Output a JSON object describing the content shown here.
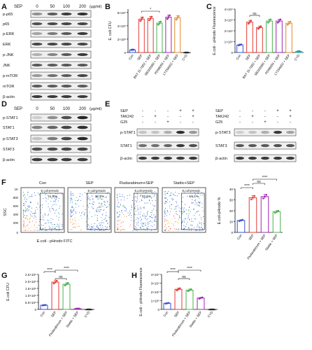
{
  "panels": {
    "A": {
      "letter": "A",
      "sep_label": "SEP",
      "doses": [
        "0",
        "50",
        "100",
        "200"
      ],
      "unit": "(μg/ml)",
      "proteins": [
        "p-p65",
        "p65",
        "p-ERK",
        "ERK",
        "p-JNK",
        "JNK",
        "p-mTOR",
        "mTOR",
        "β-actin"
      ]
    },
    "B": {
      "letter": "B",
      "ylabel": "E. coli CFU",
      "yticks": [
        "0",
        "2×10⁶",
        "4×10⁶",
        "6×10⁶"
      ],
      "sig": "*",
      "categories": [
        "Con",
        "SEP",
        "BAY 11-7082 + SEP",
        "SB203580 + SEP",
        "PD98059 + SEP",
        "LY294002 + SEP",
        "CYD"
      ]
    },
    "C": {
      "letter": "C",
      "ylabel": "E.coli - pHrodo Fluorescence",
      "yticks": [
        "0",
        "1×10⁴",
        "2×10⁴",
        "3×10⁴",
        "4×10⁴"
      ],
      "sig": "ns",
      "categories": [
        "Con",
        "SEP",
        "BAY 11-7082 + SEP",
        "SB203580 + SEP",
        "PD98059 + SEP",
        "LY294002 + SEP",
        "CYD"
      ]
    },
    "D": {
      "letter": "D",
      "sep_label": "SEP",
      "doses": [
        "0",
        "50",
        "100",
        "200"
      ],
      "unit": "(μg/ml)",
      "proteins": [
        "p-STAT1",
        "STAT1",
        "p-STAT3",
        "STAT3",
        "β-actin"
      ]
    },
    "E": {
      "letter": "E",
      "left": {
        "row_labels": [
          "SEP",
          "TAK242",
          "G25"
        ],
        "grid": [
          [
            "-",
            "-",
            "-",
            "+",
            "+"
          ],
          [
            "-",
            "+",
            "-",
            "-",
            "+"
          ],
          [
            "-",
            "-",
            "+",
            "-",
            "-"
          ]
        ],
        "proteins": [
          "p-STAT1",
          "STAT1",
          "β-actin"
        ]
      },
      "right": {
        "row_labels": [
          "SEP",
          "TAK242",
          "G25"
        ],
        "grid": [
          [
            "-",
            "-",
            "-",
            "+",
            "+"
          ],
          [
            "-",
            "+",
            "-",
            "-",
            "+"
          ],
          [
            "-",
            "-",
            "+",
            "-",
            "-"
          ]
        ],
        "proteins": [
          "p-STAT3",
          "STAT3",
          "β-actin"
        ]
      }
    },
    "F": {
      "letter": "F",
      "y_axis": "SSC",
      "x_axis": "E.coli - pHrodo FITC",
      "y_ticks": [
        "1K",
        "800",
        "600",
        "400",
        "200",
        "0"
      ],
      "plots": [
        {
          "title": "Con",
          "gate_label": "E.coli-pHrodo",
          "percent": "11.8%"
        },
        {
          "title": "SEP",
          "gate_label": "E.coli-pHrodo",
          "percent": "32.4%"
        },
        {
          "title": "Fludarabinum+SEP",
          "gate_label": "E.coli-pHrodo",
          "percent": "33.1%"
        },
        {
          "title": "Stattic+SEP",
          "gate_label": "E.coli-pHrodo",
          "percent": "19.1%"
        }
      ],
      "bar_ylabel": "E.coli-pHrodo %",
      "bar_yticks": [
        "0",
        "10",
        "20",
        "30",
        "40"
      ],
      "bar_categories": [
        "Con",
        "SEP",
        "Fludarabinum + SEP",
        "Stattic + SEP"
      ],
      "sig": [
        "****",
        "ns",
        "****"
      ]
    },
    "G": {
      "letter": "G",
      "ylabel": "E.coli CFU",
      "yticks": [
        "0",
        "5.0×10⁵",
        "1.0×10⁶",
        "1.5×10⁶",
        "2.0×10⁶",
        "2.5×10⁶"
      ],
      "categories": [
        "Con",
        "SEP",
        "Fludarabinum + SEP",
        "Stattic + SEP",
        "CYD"
      ],
      "sig": [
        "****",
        "ns",
        "****"
      ]
    },
    "H": {
      "letter": "H",
      "ylabel": "E.coli - pHrodo Fluorescence",
      "yticks": [
        "0",
        "1×10⁴",
        "2×10⁴",
        "3×10⁴",
        "4×10⁴"
      ],
      "categories": [
        "Con",
        "SEP",
        "Fludarabinum + SEP",
        "Stattic + SEP",
        "CYD"
      ],
      "sig": [
        "****",
        "ns",
        "****"
      ]
    }
  },
  "colors": {
    "con": "#3a4fd6",
    "sep": "#e53935",
    "green": "#4caf50",
    "purple": "#9c27b0",
    "orange": "#e08a2c",
    "teal": "#21a0a8",
    "black": "#222222"
  },
  "chart_data": [
    {
      "panel": "B",
      "type": "bar",
      "categories": [
        "Con",
        "SEP",
        "BAY 11-7082 + SEP",
        "SB203580 + SEP",
        "PD98059 + SEP",
        "LY294002 + SEP",
        "CYD"
      ],
      "values": [
        0.4,
        5.0,
        5.1,
        4.4,
        5.3,
        5.2,
        0.0
      ],
      "ylabel": "E. coli CFU",
      "ylim": [
        0,
        6.5
      ],
      "yunit": "×10⁶"
    },
    {
      "panel": "C",
      "type": "bar",
      "categories": [
        "Con",
        "SEP",
        "BAY 11-7082 + SEP",
        "SB203580 + SEP",
        "PD98059 + SEP",
        "LY294002 + SEP",
        "CYD"
      ],
      "values": [
        0.7,
        2.8,
        2.3,
        2.9,
        2.9,
        2.7,
        0.1
      ],
      "ylabel": "E.coli - pHrodo Fluorescence",
      "ylim": [
        0,
        4
      ],
      "yunit": "×10⁴"
    },
    {
      "panel": "F",
      "type": "bar",
      "categories": [
        "Con",
        "SEP",
        "Fludarabinum + SEP",
        "Stattic + SEP"
      ],
      "values": [
        11,
        32,
        33,
        19
      ],
      "ylabel": "E.coli-pHrodo %",
      "ylim": [
        0,
        40
      ]
    },
    {
      "panel": "G",
      "type": "bar",
      "categories": [
        "Con",
        "SEP",
        "Fludarabinum + SEP",
        "Stattic + SEP",
        "CYD"
      ],
      "values": [
        0.3,
        1.95,
        1.8,
        0.05,
        0.0
      ],
      "ylabel": "E.coli CFU",
      "ylim": [
        0,
        2.5
      ],
      "yunit": "×10⁶"
    },
    {
      "panel": "H",
      "type": "bar",
      "categories": [
        "Con",
        "SEP",
        "Fludarabinum + SEP",
        "Stattic + SEP",
        "CYD"
      ],
      "values": [
        0.7,
        2.3,
        2.2,
        1.3,
        0.0
      ],
      "ylabel": "E.coli - pHrodo Fluorescence",
      "ylim": [
        0,
        4
      ],
      "yunit": "×10⁴"
    }
  ]
}
